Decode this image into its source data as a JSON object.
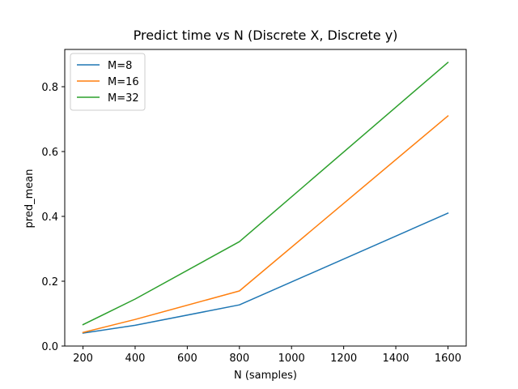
{
  "chart_data": {
    "type": "line",
    "title": "Predict time vs N (Discrete X, Discrete y)",
    "xlabel": "N (samples)",
    "ylabel": "pred_mean",
    "x": [
      200,
      400,
      800,
      1600
    ],
    "xlim": [
      130,
      1670
    ],
    "ylim": [
      0,
      0.915
    ],
    "xticks": [
      200,
      400,
      600,
      800,
      1000,
      1200,
      1400,
      1600
    ],
    "yticks": [
      0.0,
      0.2,
      0.4,
      0.6,
      0.8
    ],
    "ytick_labels": [
      "0.0",
      "0.2",
      "0.4",
      "0.6",
      "0.8"
    ],
    "grid": false,
    "legend_position": "upper-left",
    "series": [
      {
        "name": "M=8",
        "color": "#1f77b4",
        "values": [
          0.04,
          0.064,
          0.127,
          0.41
        ]
      },
      {
        "name": "M=16",
        "color": "#ff7f0e",
        "values": [
          0.042,
          0.082,
          0.17,
          0.71
        ]
      },
      {
        "name": "M=32",
        "color": "#2ca02c",
        "values": [
          0.066,
          0.145,
          0.322,
          0.875
        ]
      }
    ]
  }
}
